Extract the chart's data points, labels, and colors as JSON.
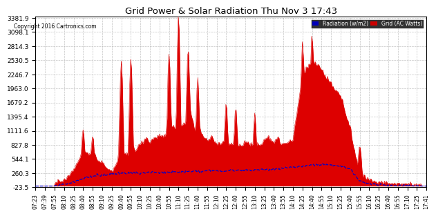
{
  "title": "Grid Power & Solar Radiation Thu Nov 3 17:43",
  "copyright": "Copyright 2016 Cartronics.com",
  "legend_radiation": "Radiation (w/m2)",
  "legend_grid": "Grid (AC Watts)",
  "y_ticks": [
    -23.5,
    260.3,
    544.1,
    827.8,
    1111.6,
    1395.4,
    1679.2,
    1963.0,
    2246.7,
    2530.5,
    2814.3,
    3098.1,
    3381.9
  ],
  "x_tick_labels": [
    "07:23",
    "07:39",
    "07:55",
    "08:10",
    "08:25",
    "08:40",
    "08:55",
    "09:10",
    "09:25",
    "09:40",
    "09:55",
    "10:10",
    "10:25",
    "10:40",
    "10:55",
    "11:10",
    "11:25",
    "11:40",
    "11:55",
    "12:10",
    "12:25",
    "12:40",
    "12:55",
    "13:10",
    "13:25",
    "13:40",
    "13:55",
    "14:10",
    "14:25",
    "14:40",
    "14:55",
    "15:10",
    "15:25",
    "15:40",
    "15:55",
    "16:10",
    "16:25",
    "16:40",
    "16:55",
    "17:10",
    "17:25",
    "17:41"
  ],
  "bg_color": "#ffffff",
  "plot_bg_color": "#ffffff",
  "grid_color": "#aaaaaa",
  "red_color": "#dd0000",
  "blue_color": "#0000cc",
  "title_color": "#000000",
  "copyright_color": "#000000",
  "legend_grid_bg": "#cc0000",
  "legend_radiation_bg": "#0000bb"
}
